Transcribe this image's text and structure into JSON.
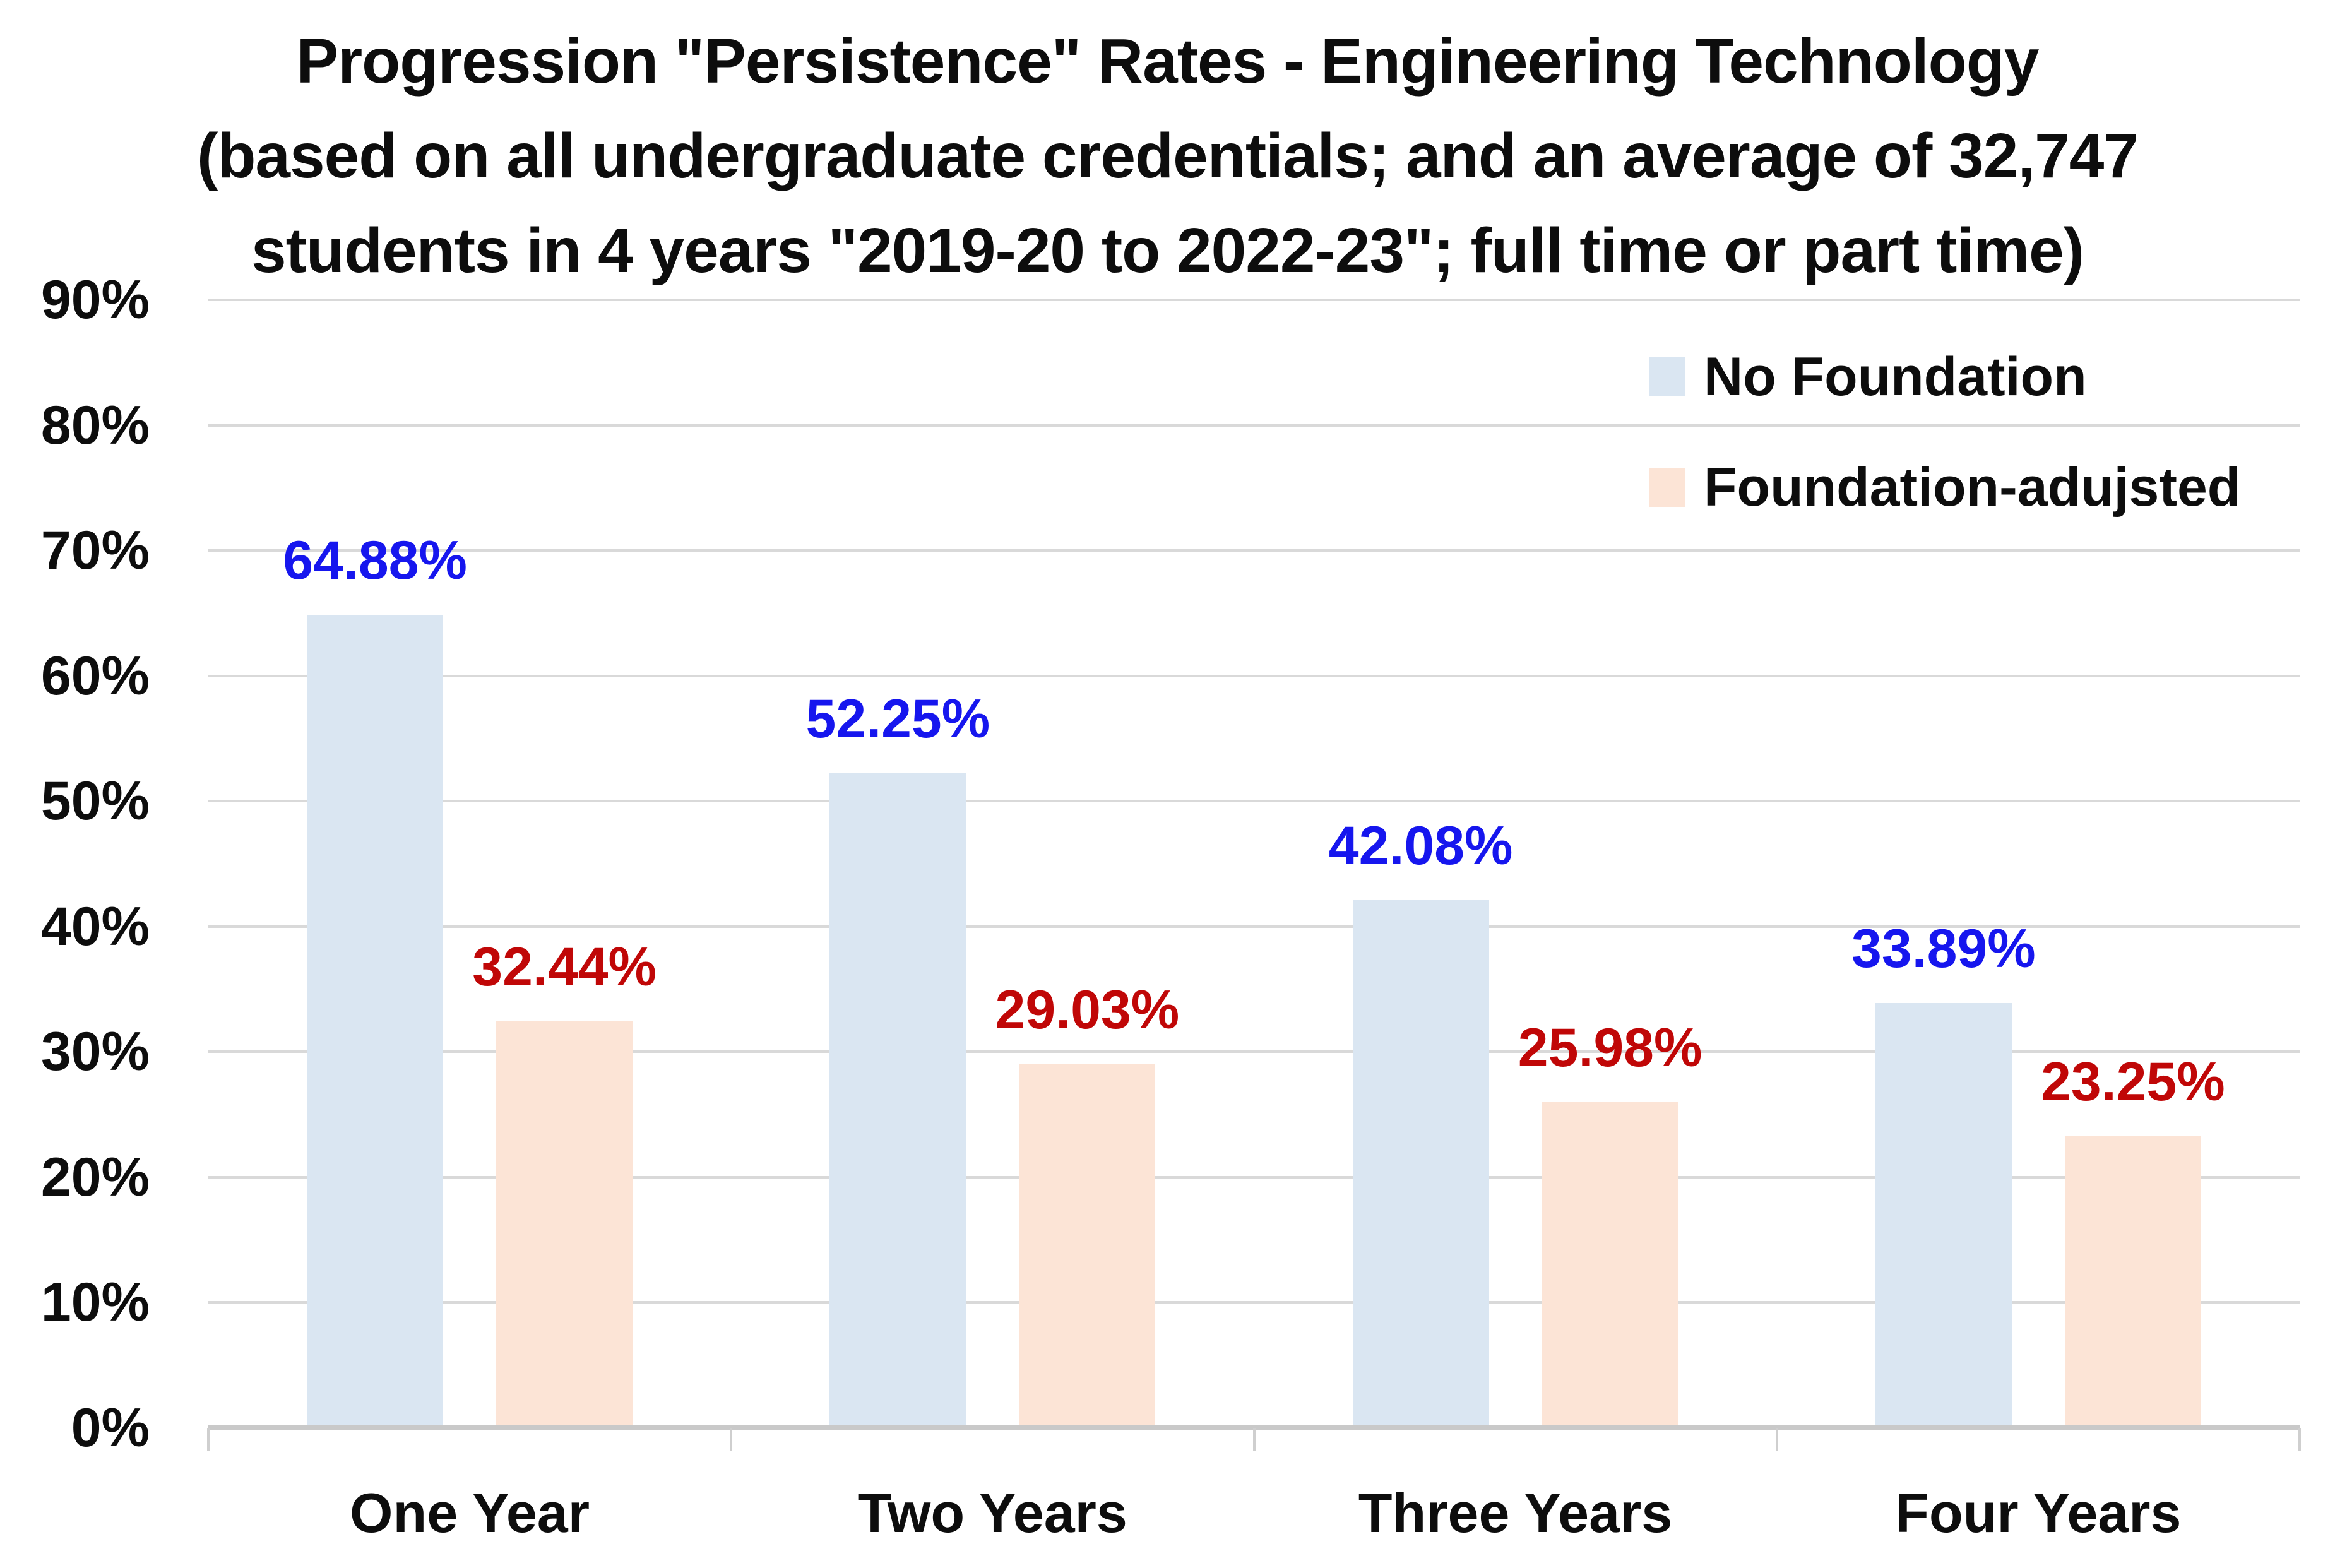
{
  "chart_data": {
    "type": "bar",
    "title": "Progression \"Persistence\" Rates - Engineering Technology (based on all undergraduate credentials; and an average of 32,747 students in 4 years \"2019-20 to 2022-23\"; full time or part time)",
    "title_lines": [
      "Progression \"Persistence\" Rates - Engineering Technology",
      "(based on all undergraduate credentials; and an average of 32,747",
      "students in 4 years \"2019-20 to 2022-23\"; full time or part time)"
    ],
    "categories": [
      "One Year",
      "Two Years",
      "Three Years",
      "Four Years"
    ],
    "series": [
      {
        "name": "No Foundation",
        "values": [
          64.88,
          52.25,
          42.08,
          33.89
        ],
        "data_labels": [
          "64.88%",
          "52.25%",
          "42.08%",
          "33.89%"
        ],
        "bar_color": "#dae6f2",
        "label_color": "#1616ee"
      },
      {
        "name": "Foundation-adujsted",
        "values": [
          32.44,
          29.03,
          25.98,
          23.25
        ],
        "data_labels": [
          "32.44%",
          "29.03%",
          "25.98%",
          "23.25%"
        ],
        "bar_color": "#fce4d6",
        "label_color": "#c00707"
      }
    ],
    "y_axis": {
      "min": 0,
      "max": 90,
      "ticks": [
        {
          "label": "90%",
          "value": 90
        },
        {
          "label": "80%",
          "value": 80
        },
        {
          "label": "70%",
          "value": 70
        },
        {
          "label": "60%",
          "value": 60
        },
        {
          "label": "50%",
          "value": 50
        },
        {
          "label": "40%",
          "value": 40
        },
        {
          "label": "30%",
          "value": 30
        },
        {
          "label": "20%",
          "value": 20
        },
        {
          "label": "10%",
          "value": 10
        },
        {
          "label": "0%",
          "value": 0
        }
      ]
    },
    "grid": true,
    "legend": {
      "position": "top-right",
      "entries": [
        "No Foundation",
        "Foundation-adujsted"
      ]
    }
  }
}
